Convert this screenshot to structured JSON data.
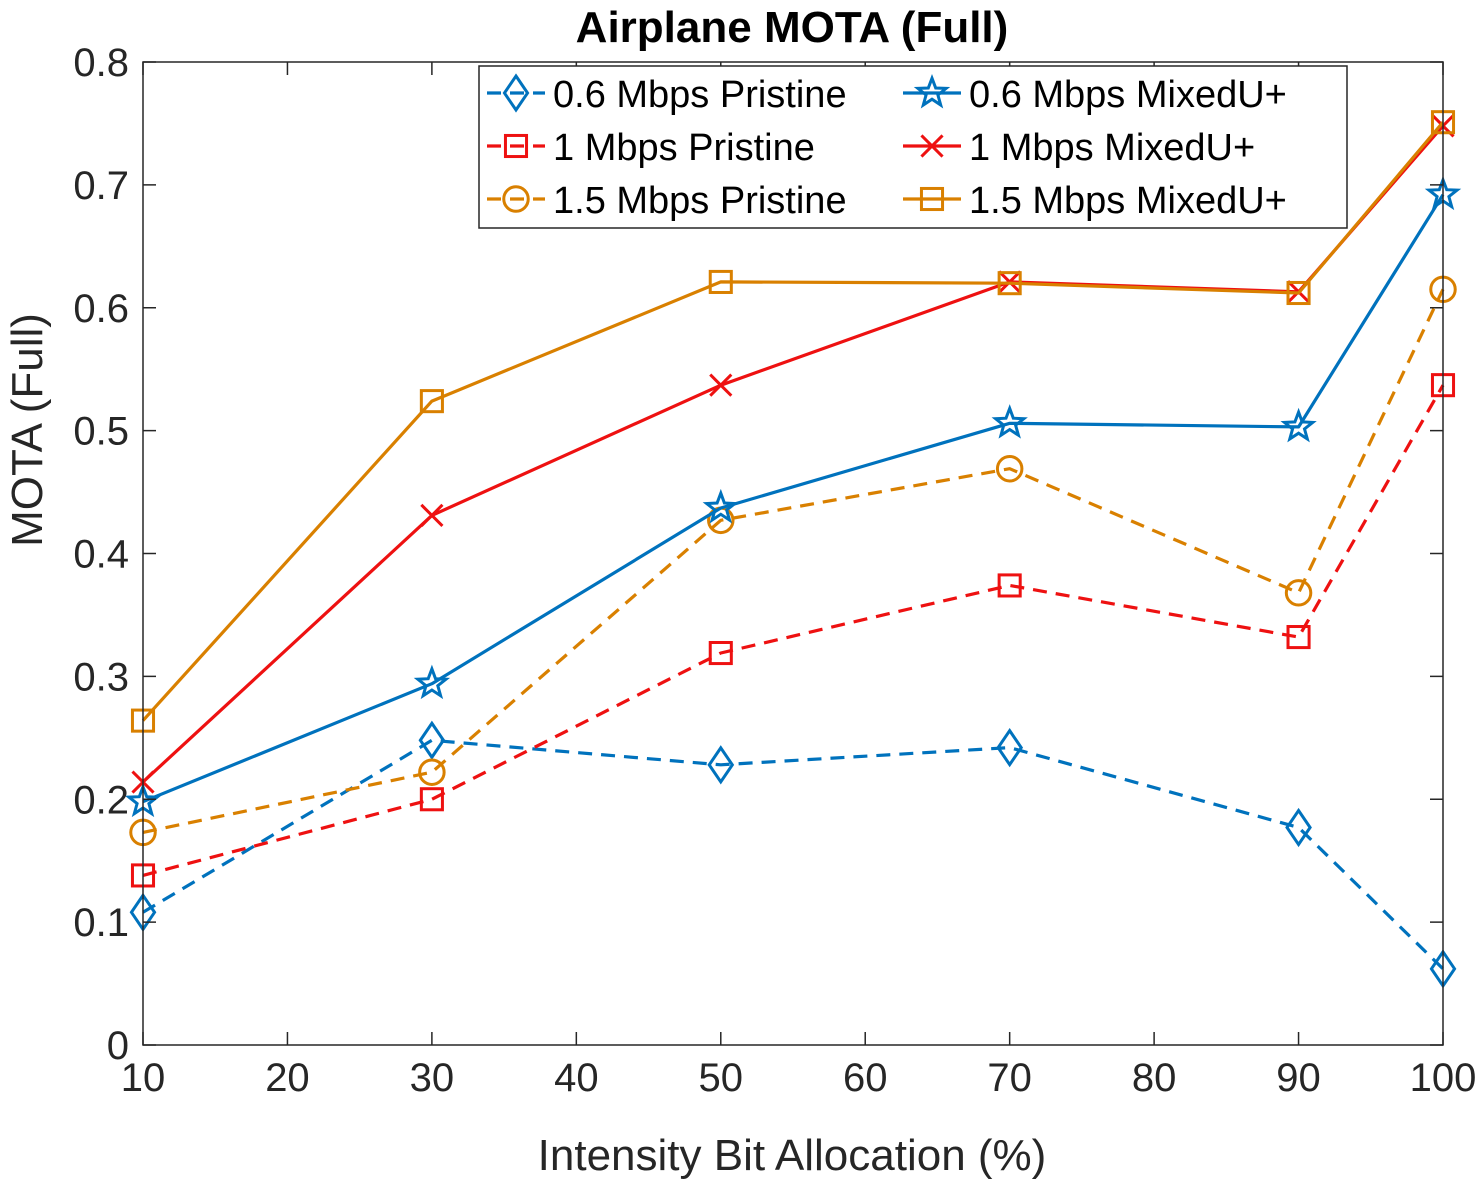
{
  "chart_data": {
    "type": "line",
    "title": "Airplane MOTA (Full)",
    "xlabel": "Intensity Bit Allocation (%)",
    "ylabel": "MOTA (Full)",
    "xlim": [
      10,
      100
    ],
    "ylim": [
      0,
      0.8
    ],
    "xticks": [
      10,
      20,
      30,
      40,
      50,
      60,
      70,
      80,
      90,
      100
    ],
    "xtick_labels": [
      "10",
      "20",
      "30",
      "40",
      "50",
      "60",
      "70",
      "80",
      "90",
      "100"
    ],
    "yticks": [
      0,
      0.1,
      0.2,
      0.3,
      0.4,
      0.5,
      0.6,
      0.7,
      0.8
    ],
    "ytick_labels": [
      "0",
      "0.1",
      "0.2",
      "0.3",
      "0.4",
      "0.5",
      "0.6",
      "0.7",
      "0.8"
    ],
    "grid": false,
    "legend_position": "top-right",
    "x": [
      10,
      30,
      50,
      70,
      90,
      100
    ],
    "series": [
      {
        "name": "0.6 Mbps Pristine",
        "color": "#0072BD",
        "dash": true,
        "marker": "diamond",
        "values": [
          0.108,
          0.248,
          0.228,
          0.242,
          0.177,
          0.062
        ]
      },
      {
        "name": "1 Mbps Pristine",
        "color": "#EE1111",
        "dash": true,
        "marker": "square",
        "values": [
          0.138,
          0.2,
          0.319,
          0.374,
          0.332,
          0.537
        ]
      },
      {
        "name": "1.5 Mbps Pristine",
        "color": "#D98000",
        "dash": true,
        "marker": "circle",
        "values": [
          0.173,
          0.222,
          0.427,
          0.469,
          0.368,
          0.615
        ]
      },
      {
        "name": "0.6 Mbps MixedU+",
        "color": "#0072BD",
        "dash": false,
        "marker": "star",
        "values": [
          0.198,
          0.294,
          0.437,
          0.506,
          0.503,
          0.692
        ]
      },
      {
        "name": "1 Mbps MixedU+",
        "color": "#EE1111",
        "dash": false,
        "marker": "x",
        "values": [
          0.214,
          0.431,
          0.537,
          0.621,
          0.613,
          0.748
        ]
      },
      {
        "name": "1.5 Mbps MixedU+",
        "color": "#D98000",
        "dash": false,
        "marker": "square",
        "values": [
          0.264,
          0.524,
          0.621,
          0.62,
          0.612,
          0.751
        ]
      }
    ]
  }
}
